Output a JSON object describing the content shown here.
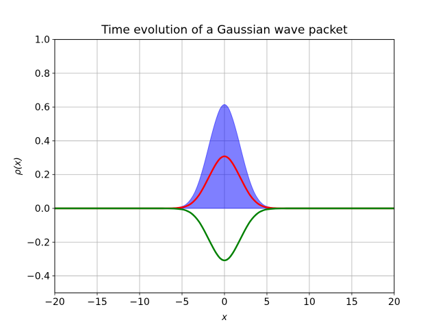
{
  "chart_data": {
    "type": "line",
    "title": "Time evolution of a Gaussian wave packet",
    "xlabel": "x",
    "ylabel": "ρ(x)",
    "xlim": [
      -20,
      20
    ],
    "ylim": [
      -0.5,
      1.0
    ],
    "grid": true,
    "x_ticks": [
      -20,
      -15,
      -10,
      -5,
      0,
      5,
      10,
      15,
      20
    ],
    "x_tick_labels": [
      "−20",
      "−15",
      "−10",
      "−5",
      "0",
      "5",
      "10",
      "15",
      "20"
    ],
    "y_ticks": [
      -0.4,
      -0.2,
      0.0,
      0.2,
      0.4,
      0.6,
      0.8,
      1.0
    ],
    "y_tick_labels": [
      "−0.4",
      "−0.2",
      "0.0",
      "0.2",
      "0.4",
      "0.6",
      "0.8",
      "1.0"
    ],
    "x": [
      -20,
      -10,
      -8,
      -7,
      -6,
      -5,
      -4.5,
      -4,
      -3.5,
      -3,
      -2.5,
      -2,
      -1.5,
      -1,
      -0.5,
      0,
      0.5,
      1,
      1.5,
      2,
      2.5,
      3,
      3.5,
      4,
      4.5,
      5,
      6,
      7,
      8,
      10,
      20
    ],
    "series": [
      {
        "style": "filled-area",
        "color": "#0000ff",
        "opacity": 0.5,
        "values": [
          0,
          0,
          0,
          0.0002,
          0.002,
          0.011,
          0.025,
          0.052,
          0.095,
          0.159,
          0.242,
          0.338,
          0.437,
          0.525,
          0.591,
          0.615,
          0.591,
          0.525,
          0.437,
          0.338,
          0.242,
          0.159,
          0.095,
          0.052,
          0.025,
          0.011,
          0.002,
          0.0002,
          0,
          0,
          0
        ]
      },
      {
        "style": "line",
        "color": "#ff0000",
        "values": [
          0,
          0,
          0,
          0.0001,
          0.001,
          0.006,
          0.013,
          0.026,
          0.048,
          0.079,
          0.121,
          0.169,
          0.218,
          0.263,
          0.296,
          0.308,
          0.296,
          0.263,
          0.218,
          0.169,
          0.121,
          0.079,
          0.048,
          0.026,
          0.013,
          0.006,
          0.001,
          0.0001,
          0,
          0,
          0
        ]
      },
      {
        "style": "line",
        "color": "#008000",
        "values": [
          0,
          0,
          0,
          -0.0001,
          -0.001,
          -0.006,
          -0.013,
          -0.026,
          -0.048,
          -0.079,
          -0.121,
          -0.169,
          -0.218,
          -0.263,
          -0.296,
          -0.308,
          -0.296,
          -0.263,
          -0.218,
          -0.169,
          -0.121,
          -0.079,
          -0.048,
          -0.026,
          -0.013,
          -0.006,
          -0.001,
          -0.0001,
          0,
          0,
          0
        ]
      }
    ]
  }
}
